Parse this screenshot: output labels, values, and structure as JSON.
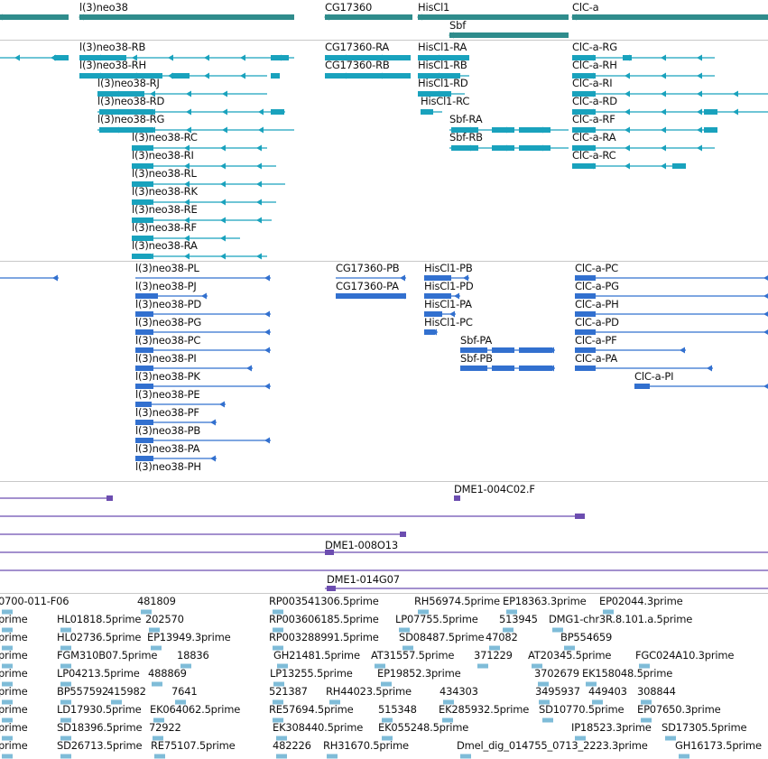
{
  "colors": {
    "gene": "#2f8c8c",
    "mrna": "#19a2bd",
    "protein": "#3270cf",
    "clone": "#6c4db0",
    "est": "#7fbcd8",
    "divider": "#c8c8c8",
    "text": "#111111"
  },
  "tracks": {
    "genes": {
      "features": [
        {
          "label": "l(3)neo38"
        },
        {
          "label": "CG17360"
        },
        {
          "label": "HisCl1"
        },
        {
          "label": "ClC-a"
        },
        {
          "label": "Sbf"
        }
      ]
    },
    "transcripts": {
      "features": [
        {
          "label": "l(3)neo38-RB"
        },
        {
          "label": "l(3)neo38-RH"
        },
        {
          "label": "l(3)neo38-RJ"
        },
        {
          "label": "l(3)neo38-RD"
        },
        {
          "label": "l(3)neo38-RG"
        },
        {
          "label": "l(3)neo38-RC"
        },
        {
          "label": "l(3)neo38-RI"
        },
        {
          "label": "l(3)neo38-RL"
        },
        {
          "label": "l(3)neo38-RK"
        },
        {
          "label": "l(3)neo38-RE"
        },
        {
          "label": "l(3)neo38-RF"
        },
        {
          "label": "l(3)neo38-RA"
        },
        {
          "label": "CG17360-RA"
        },
        {
          "label": "CG17360-RB"
        },
        {
          "label": "HisCl1-RA"
        },
        {
          "label": "HisCl1-RB"
        },
        {
          "label": "HisCl1-RD"
        },
        {
          "label": "HisCl1-RC"
        },
        {
          "label": "Sbf-RA"
        },
        {
          "label": "Sbf-RB"
        },
        {
          "label": "ClC-a-RG"
        },
        {
          "label": "ClC-a-RH"
        },
        {
          "label": "ClC-a-RI"
        },
        {
          "label": "ClC-a-RD"
        },
        {
          "label": "ClC-a-RF"
        },
        {
          "label": "ClC-a-RA"
        },
        {
          "label": "ClC-a-RC"
        }
      ]
    },
    "proteins": {
      "features": [
        {
          "label": "l(3)neo38-PL"
        },
        {
          "label": "l(3)neo38-PJ"
        },
        {
          "label": "l(3)neo38-PD"
        },
        {
          "label": "l(3)neo38-PG"
        },
        {
          "label": "l(3)neo38-PC"
        },
        {
          "label": "l(3)neo38-PI"
        },
        {
          "label": "l(3)neo38-PK"
        },
        {
          "label": "l(3)neo38-PE"
        },
        {
          "label": "l(3)neo38-PF"
        },
        {
          "label": "l(3)neo38-PB"
        },
        {
          "label": "l(3)neo38-PA"
        },
        {
          "label": "l(3)neo38-PH"
        },
        {
          "label": "CG17360-PB"
        },
        {
          "label": "CG17360-PA"
        },
        {
          "label": "HisCl1-PB"
        },
        {
          "label": "HisCl1-PD"
        },
        {
          "label": "HisCl1-PA"
        },
        {
          "label": "HisCl1-PC"
        },
        {
          "label": "Sbf-PA"
        },
        {
          "label": "Sbf-PB"
        },
        {
          "label": "ClC-a-PC"
        },
        {
          "label": "ClC-a-PG"
        },
        {
          "label": "ClC-a-PH"
        },
        {
          "label": "ClC-a-PD"
        },
        {
          "label": "ClC-a-PF"
        },
        {
          "label": "ClC-a-PA"
        },
        {
          "label": "ClC-a-PI"
        }
      ]
    },
    "clones": {
      "features": [
        {
          "label": "DME1-004C02.F"
        },
        {
          "label": "DME1-008O13"
        },
        {
          "label": "DME1-014G07"
        }
      ]
    },
    "ests": {
      "features": [
        {
          "label": "0700-011-F06"
        },
        {
          "label": "481809"
        },
        {
          "label": "RP003541306.5prime"
        },
        {
          "label": "RH56974.5prime"
        },
        {
          "label": "EP18363.3prime"
        },
        {
          "label": "EP02044.3prime"
        },
        {
          "label": "prime"
        },
        {
          "label": "HL01818.5prime"
        },
        {
          "label": "202570"
        },
        {
          "label": "RP003606185.5prime"
        },
        {
          "label": "LP07755.5prime"
        },
        {
          "label": "513945"
        },
        {
          "label": "DMG1-chr3R.8.101.a.5prime"
        },
        {
          "label": "prime"
        },
        {
          "label": "HL02736.5prime"
        },
        {
          "label": "EP13949.3prime"
        },
        {
          "label": "RP003288991.5prime"
        },
        {
          "label": "SD08487.5prime"
        },
        {
          "label": "47082"
        },
        {
          "label": "BP554659"
        },
        {
          "label": "prime"
        },
        {
          "label": "FGM310B07.5prime"
        },
        {
          "label": "18836"
        },
        {
          "label": "GH21481.5prime"
        },
        {
          "label": "AT31557.5prime"
        },
        {
          "label": "371229"
        },
        {
          "label": "AT20345.5prime"
        },
        {
          "label": "FGC024A10.3prime"
        },
        {
          "label": "prime"
        },
        {
          "label": "LP04213.5prime"
        },
        {
          "label": "488869"
        },
        {
          "label": "LP13255.5prime"
        },
        {
          "label": "EP19852.3prime"
        },
        {
          "label": "3702679"
        },
        {
          "label": "EK158048.5prime"
        },
        {
          "label": "prime"
        },
        {
          "label": "BP557592"
        },
        {
          "label": "415982"
        },
        {
          "label": "7641"
        },
        {
          "label": "521387"
        },
        {
          "label": "RH44023.5prime"
        },
        {
          "label": "434303"
        },
        {
          "label": "3495937"
        },
        {
          "label": "449403"
        },
        {
          "label": "308844"
        },
        {
          "label": "prime"
        },
        {
          "label": "LD17930.5prime"
        },
        {
          "label": "EK064062.5prime"
        },
        {
          "label": "RE57694.5prime"
        },
        {
          "label": "515348"
        },
        {
          "label": "EK285932.5prime"
        },
        {
          "label": "SD10770.5prime"
        },
        {
          "label": "EP07650.3prime"
        },
        {
          "label": "prime"
        },
        {
          "label": "SD18396.5prime"
        },
        {
          "label": "72922"
        },
        {
          "label": "EK308440.5prime"
        },
        {
          "label": "EK055248.5prime"
        },
        {
          "label": "IP18523.3prime"
        },
        {
          "label": "SD17305.5prime"
        },
        {
          "label": "prime"
        },
        {
          "label": "SD26713.5prime"
        },
        {
          "label": "RE75107.5prime"
        },
        {
          "label": "482226"
        },
        {
          "label": "RH31670.5prime"
        },
        {
          "label": "Dmel_dig_014755_0713_2223.3prime"
        },
        {
          "label": "GH16173.5prime"
        }
      ]
    }
  }
}
